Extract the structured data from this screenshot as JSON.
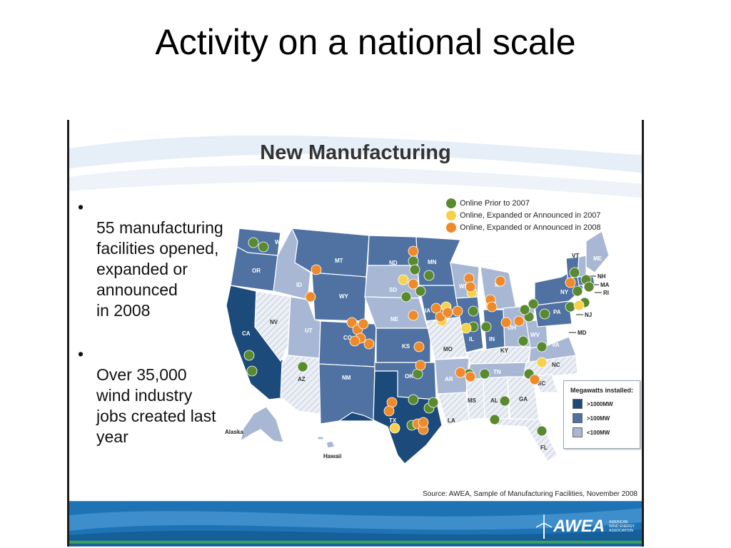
{
  "slide": {
    "title": "Activity on a national scale"
  },
  "panel": {
    "title": "New Manufacturing",
    "bullets": [
      {
        "text": "55 manufacturing\nfacilities opened,\nexpanded or\nannounced\nin 2008"
      },
      {
        "text": "Over 35,000\nwind industry\njobs created last\nyear"
      }
    ],
    "legend": [
      {
        "label": "Online Prior to 2007",
        "color": "#5a8a2f"
      },
      {
        "label": "Online, Expanded or Announced in 2007",
        "color": "#f5d24a"
      },
      {
        "label": "Online, Expanded or Announced in 2008",
        "color": "#ee8a2a"
      }
    ],
    "megawatts": {
      "title": "Megawatts installed:",
      "items": [
        {
          "label": ">1000MW",
          "color": "#1c4a7a"
        },
        {
          "label": ">100MW",
          "color": "#4f72a3"
        },
        {
          "label": "<100MW",
          "color": "#a8b8d4"
        }
      ]
    },
    "map_labels": {
      "states": [
        "WA",
        "OR",
        "CA",
        "NV",
        "ID",
        "MT",
        "WY",
        "UT",
        "AZ",
        "CO",
        "NM",
        "ND",
        "SD",
        "NE",
        "KS",
        "OK",
        "TX",
        "MN",
        "IA",
        "MO",
        "AR",
        "LA",
        "WI",
        "IL",
        "MS",
        "MI",
        "IN",
        "KY",
        "TN",
        "AL",
        "OH",
        "GA",
        "FL",
        "WV",
        "VA",
        "NC",
        "SC",
        "PA",
        "NY",
        "VT",
        "ME"
      ],
      "external": [
        "NH",
        "MA",
        "RI",
        "NJ",
        "MD"
      ],
      "regions": [
        "Alaska",
        "Hawaii"
      ]
    },
    "source": "Source: AWEA, Sample of Manufacturing Facilities, November 2008",
    "logo": {
      "word": "AWEA",
      "subtitle": "AMERICAN\nWIND ENERGY\nASSOCIATION"
    }
  }
}
